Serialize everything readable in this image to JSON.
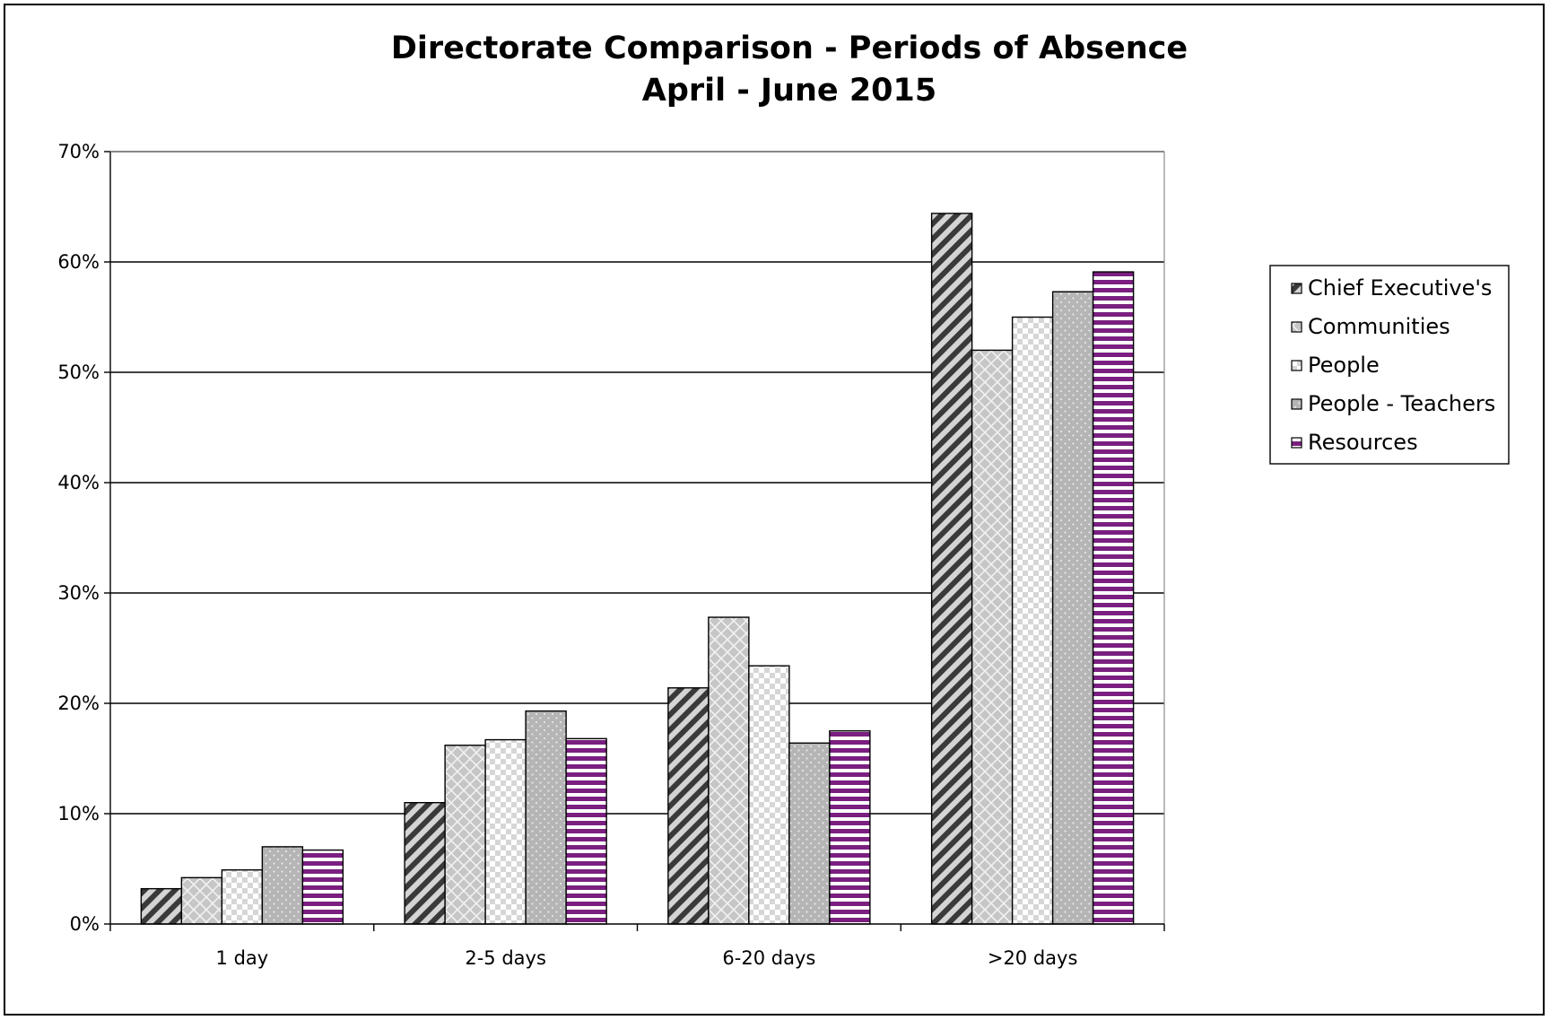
{
  "chart_data": {
    "type": "bar",
    "title": [
      "Directorate Comparison - Periods of Absence",
      "April - June 2015"
    ],
    "categories": [
      "1 day",
      "2-5 days",
      "6-20 days",
      ">20 days"
    ],
    "y_ticks": [
      "0%",
      "10%",
      "20%",
      "30%",
      "40%",
      "50%",
      "60%",
      "70%"
    ],
    "ylim": [
      0,
      70
    ],
    "grid": true,
    "legend_position": "right",
    "series": [
      {
        "name": "Chief Executive's",
        "values": [
          3.2,
          11.0,
          21.4,
          64.4
        ],
        "color": "#3a3a3a",
        "pattern": "diagonal-stripes"
      },
      {
        "name": "Communities",
        "values": [
          4.2,
          16.2,
          27.8,
          52.0
        ],
        "color": "#c8c8c8",
        "pattern": "crosshatch"
      },
      {
        "name": "People",
        "values": [
          4.9,
          16.7,
          23.4,
          55.0
        ],
        "color": "#ececec",
        "pattern": "checker"
      },
      {
        "name": "People - Teachers",
        "values": [
          7.0,
          19.3,
          16.4,
          57.3
        ],
        "color": "#b8b8b8",
        "pattern": "dots"
      },
      {
        "name": "Resources",
        "values": [
          6.7,
          16.8,
          17.5,
          59.1
        ],
        "color": "#7a1f80",
        "pattern": "horizontal-stripes"
      }
    ]
  }
}
